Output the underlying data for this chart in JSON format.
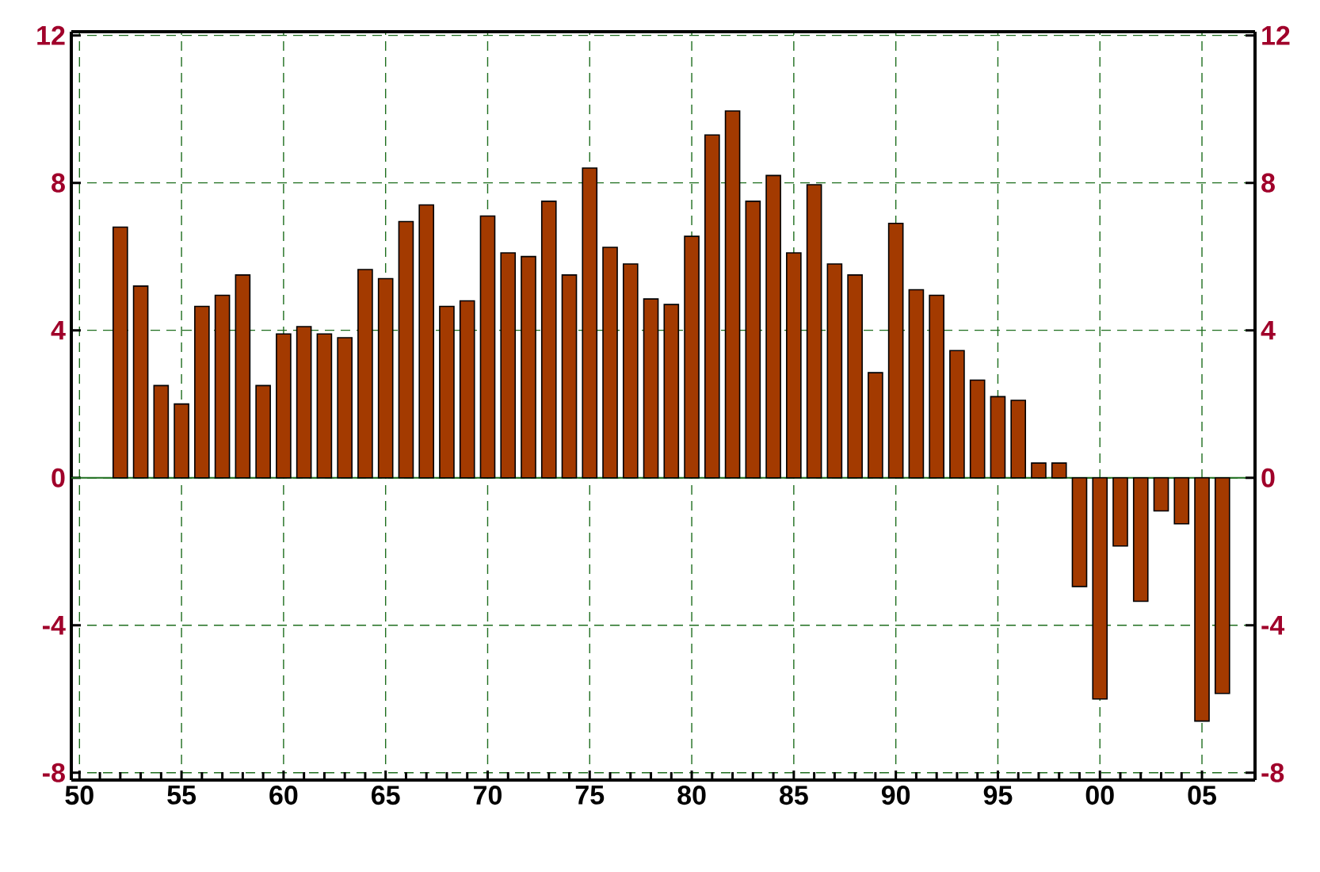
{
  "chart_data": {
    "type": "bar",
    "color": "#a33a00",
    "x": [
      1952,
      1953,
      1954,
      1955,
      1956,
      1957,
      1958,
      1959,
      1960,
      1961,
      1962,
      1963,
      1964,
      1965,
      1966,
      1967,
      1968,
      1969,
      1970,
      1971,
      1972,
      1973,
      1974,
      1975,
      1976,
      1977,
      1978,
      1979,
      1980,
      1981,
      1982,
      1983,
      1984,
      1985,
      1986,
      1987,
      1988,
      1989,
      1990,
      1991,
      1992,
      1993,
      1994,
      1995,
      1996,
      1997,
      1998,
      1999,
      2000,
      2001,
      2002,
      2003,
      2004,
      2005,
      2006
    ],
    "values": [
      6.8,
      5.2,
      2.5,
      2.0,
      4.65,
      4.95,
      5.5,
      2.5,
      3.9,
      4.1,
      3.9,
      3.8,
      5.65,
      5.4,
      6.95,
      7.4,
      4.65,
      4.8,
      7.1,
      6.1,
      6.0,
      7.5,
      5.5,
      8.4,
      6.25,
      5.8,
      4.85,
      4.7,
      6.55,
      9.3,
      9.95,
      7.5,
      8.2,
      6.1,
      7.95,
      5.8,
      5.5,
      2.85,
      6.9,
      5.1,
      4.95,
      3.45,
      2.65,
      2.2,
      2.1,
      0.4,
      0.4,
      -2.95,
      -6.0,
      -1.85,
      -3.35,
      -0.9,
      -1.25,
      -6.6,
      -5.85
    ],
    "xlim": [
      1949.6,
      2007.6
    ],
    "xticks": [
      {
        "value": 1950,
        "label": "50"
      },
      {
        "value": 1955,
        "label": "55"
      },
      {
        "value": 1960,
        "label": "60"
      },
      {
        "value": 1965,
        "label": "65"
      },
      {
        "value": 1970,
        "label": "70"
      },
      {
        "value": 1975,
        "label": "75"
      },
      {
        "value": 1980,
        "label": "80"
      },
      {
        "value": 1985,
        "label": "85"
      },
      {
        "value": 1990,
        "label": "90"
      },
      {
        "value": 1995,
        "label": "95"
      },
      {
        "value": 2000,
        "label": "00"
      },
      {
        "value": 2005,
        "label": "05"
      }
    ],
    "ylim": [
      -8.2,
      12.1
    ],
    "yticks": [
      -8,
      -4,
      0,
      4,
      8,
      12
    ],
    "y2lim": [
      -8.2,
      12.1
    ],
    "y2ticks": [
      -8,
      -4,
      0,
      4,
      8,
      12
    ],
    "ref_lines": [
      {
        "axis": "y",
        "value": 0,
        "color": "#1e6e1e"
      }
    ],
    "grid": true
  }
}
